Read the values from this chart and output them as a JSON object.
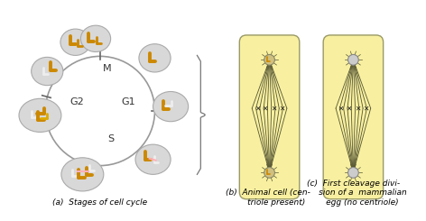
{
  "bg_color": "#FFFFFF",
  "yellow_fill": "#F5F0A8",
  "circle_color": "#D8D8D8",
  "circle_edge": "#AAAAAA",
  "orange_color": "#CC8800",
  "light_orange": "#DDAA00",
  "white_rod": "#EEEEEE",
  "spindle_line": "#555533",
  "pole_fill": "#CCCCCC",
  "pole_edge": "#888888",
  "title_a": "(a)  Stages of cell cycle",
  "label_M": "M",
  "label_G1": "G1",
  "label_G2": "G2",
  "label_S": "S",
  "font_size_label": 8,
  "font_size_caption": 6.5,
  "cell_bg": "#F8F0A0",
  "cell_edge": "#999966"
}
